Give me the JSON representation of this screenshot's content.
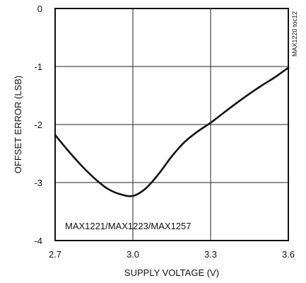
{
  "chart_data": {
    "type": "line",
    "xlabel": "SUPPLY VOLTAGE (V)",
    "ylabel": "OFFSET ERROR (LSB)",
    "xlim": [
      2.7,
      3.6
    ],
    "ylim": [
      -4,
      0
    ],
    "x_ticks": [
      2.7,
      3.0,
      3.3,
      3.6
    ],
    "x_tick_labels": [
      "2.7",
      "3.0",
      "3.3",
      "3.6"
    ],
    "y_ticks": [
      0,
      -1,
      -2,
      -3,
      -4
    ],
    "y_tick_labels": [
      "0",
      "-1",
      "-2",
      "-3",
      "-4"
    ],
    "grid": true,
    "annotation": "MAX1221/MAX1223/MAX1257",
    "side_tag": "MAX1220 toc12",
    "series": [
      {
        "x": [
          2.7,
          2.75,
          2.8,
          2.85,
          2.9,
          2.95,
          3.0,
          3.05,
          3.1,
          3.15,
          3.2,
          3.25,
          3.3,
          3.35,
          3.4,
          3.45,
          3.5,
          3.55,
          3.6
        ],
        "y": [
          -2.18,
          -2.45,
          -2.7,
          -2.92,
          -3.1,
          -3.2,
          -3.23,
          -3.1,
          -2.85,
          -2.55,
          -2.3,
          -2.12,
          -1.97,
          -1.8,
          -1.63,
          -1.47,
          -1.32,
          -1.18,
          -1.02
        ],
        "color": "#111111"
      }
    ]
  }
}
